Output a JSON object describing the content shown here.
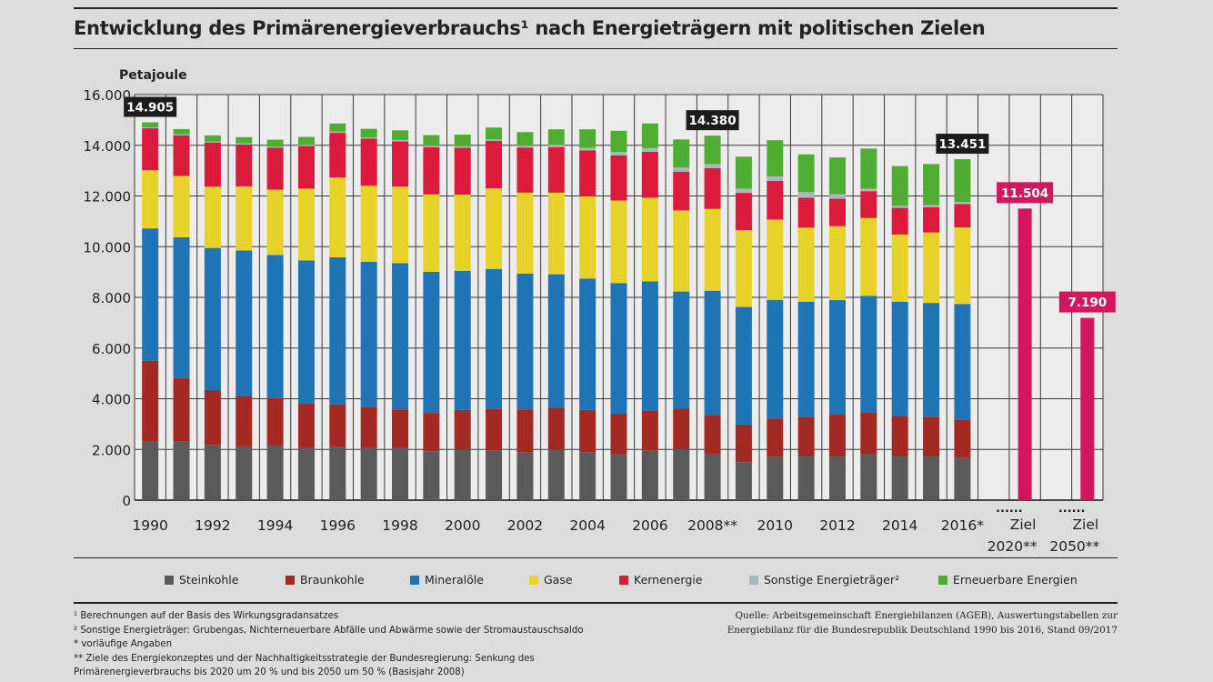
{
  "title": "Entwicklung des Primärenergieverbrauchs¹ nach Energieträgern mit politischen Zielen",
  "chart_data": {
    "type": "bar",
    "stacked": true,
    "ylabel": "Petajoule",
    "ylim": [
      0,
      16000
    ],
    "yticks": [
      "0",
      "2.000",
      "4.000",
      "6.000",
      "8.000",
      "10.000",
      "12.000",
      "14.000",
      "16.000"
    ],
    "grid": true,
    "legend_position": "bottom",
    "categories": [
      "1990",
      "1991",
      "1992",
      "1993",
      "1994",
      "1995",
      "1996",
      "1997",
      "1998",
      "1999",
      "2000",
      "2001",
      "2002",
      "2003",
      "2004",
      "2005",
      "2006",
      "2007",
      "2008**",
      "2009",
      "2010",
      "2011",
      "2012",
      "2013",
      "2014",
      "2015",
      "2016*"
    ],
    "xtick_labels": [
      {
        "index": 0,
        "label": "1990"
      },
      {
        "index": 2,
        "label": "1992"
      },
      {
        "index": 4,
        "label": "1994"
      },
      {
        "index": 6,
        "label": "1996"
      },
      {
        "index": 8,
        "label": "1998"
      },
      {
        "index": 10,
        "label": "2000"
      },
      {
        "index": 12,
        "label": "2002"
      },
      {
        "index": 14,
        "label": "2004"
      },
      {
        "index": 16,
        "label": "2006"
      },
      {
        "index": 18,
        "label": "2008**"
      },
      {
        "index": 20,
        "label": "2010"
      },
      {
        "index": 22,
        "label": "2012"
      },
      {
        "index": 24,
        "label": "2014"
      },
      {
        "index": 26,
        "label": "2016*"
      }
    ],
    "series": [
      {
        "name": "Steinkohle",
        "color": "#5a5a5a",
        "values": [
          2300,
          2310,
          2180,
          2120,
          2140,
          2060,
          2090,
          2060,
          2060,
          1930,
          2000,
          1950,
          1890,
          1990,
          1890,
          1810,
          1960,
          2010,
          1800,
          1500,
          1710,
          1720,
          1720,
          1830,
          1740,
          1720,
          1660
        ]
      },
      {
        "name": "Braunkohle",
        "color": "#a32a22",
        "values": [
          3200,
          2510,
          2160,
          1990,
          1880,
          1740,
          1690,
          1600,
          1520,
          1510,
          1560,
          1650,
          1690,
          1650,
          1670,
          1600,
          1580,
          1610,
          1560,
          1480,
          1510,
          1560,
          1650,
          1630,
          1590,
          1570,
          1520
        ]
      },
      {
        "name": "Mineralöle",
        "color": "#1f74b5",
        "values": [
          5220,
          5550,
          5610,
          5740,
          5650,
          5660,
          5800,
          5740,
          5770,
          5570,
          5480,
          5520,
          5360,
          5270,
          5180,
          5150,
          5090,
          4610,
          4900,
          4640,
          4680,
          4550,
          4520,
          4600,
          4500,
          4490,
          4560
        ]
      },
      {
        "name": "Gase",
        "color": "#e7d22a",
        "values": [
          2300,
          2420,
          2420,
          2530,
          2580,
          2830,
          3150,
          3000,
          3020,
          3050,
          3010,
          3180,
          3190,
          3220,
          3240,
          3260,
          3300,
          3200,
          3230,
          3030,
          3170,
          2920,
          2920,
          3070,
          2650,
          2780,
          3020
        ]
      },
      {
        "name": "Kernenergie",
        "color": "#dc1a3c",
        "values": [
          1650,
          1600,
          1740,
          1650,
          1650,
          1680,
          1760,
          1860,
          1780,
          1860,
          1850,
          1870,
          1780,
          1800,
          1820,
          1780,
          1810,
          1530,
          1610,
          1470,
          1530,
          1180,
          1080,
          1060,
          1050,
          1000,
          920
        ]
      },
      {
        "name": "Sonstige Energieträger²",
        "color": "#a9b7bd",
        "values": [
          40,
          40,
          40,
          40,
          40,
          50,
          50,
          50,
          60,
          60,
          60,
          60,
          70,
          90,
          100,
          140,
          150,
          160,
          160,
          170,
          170,
          220,
          180,
          100,
          80,
          80,
          80
        ]
      },
      {
        "name": "Erneuerbare Energien",
        "color": "#4fae32",
        "values": [
          195,
          210,
          240,
          250,
          280,
          310,
          320,
          340,
          380,
          420,
          460,
          470,
          540,
          610,
          730,
          830,
          970,
          1110,
          1120,
          1260,
          1430,
          1490,
          1450,
          1580,
          1570,
          1620,
          1691
        ]
      }
    ],
    "callouts": [
      {
        "index": 0,
        "label": "14.905"
      },
      {
        "index": 18,
        "label": "14.380"
      },
      {
        "index": 26,
        "label": "13.451"
      }
    ],
    "targets": [
      {
        "label_line1": "Ziel",
        "label_line2": "2020**",
        "value": 11504,
        "value_label": "11.504",
        "color": "#d2175e"
      },
      {
        "label_line1": "Ziel",
        "label_line2": "2050**",
        "value": 7190,
        "value_label": "7.190",
        "color": "#d2175e"
      }
    ],
    "gap_marker": "......"
  },
  "footnotes": [
    "¹ Berechnungen auf der Basis des Wirkungsgradansatzes",
    "² Sonstige Energieträger: Grubengas, Nichterneuerbare Abfälle und Abwärme sowie der Stromaustauschsaldo",
    "* vorläufige Angaben",
    "** Ziele des Energiekonzeptes und der Nachhaltigkeitsstrategie der Bundesregierung: Senkung des",
    "Primärenergieverbrauchs bis 2020 um 20 %  und bis 2050 um 50 % (Basisjahr 2008)"
  ],
  "source": [
    "Quelle: Arbeitsgemeinschaft Energiebilanzen (AGEB), Auswertungstabellen zur",
    "Energiebilanz für die Bundesrepublik Deutschland 1990 bis 2016, Stand 09/2017"
  ]
}
